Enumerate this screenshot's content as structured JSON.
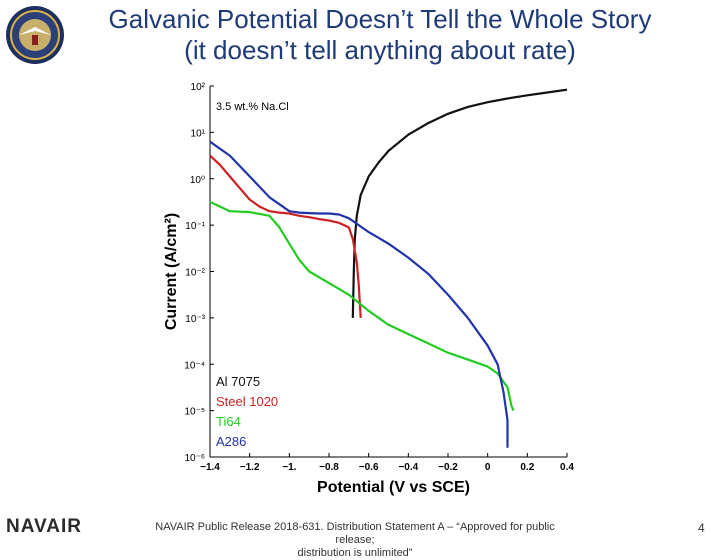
{
  "slide": {
    "title_line1": "Galvanic Potential Doesn’t Tell the Whole Story",
    "title_line2": "(it doesn’t tell anything about rate)",
    "footer_brand": "NAVAIR",
    "footer_text": "NAVAIR Public Release 2018-631. Distribution Statement A – “Approved for public release;\ndistribution is unlimited”",
    "page_number": "4",
    "title_color": "#1f3a78"
  },
  "chart_data": {
    "type": "line",
    "annotation": "3.5 wt.% Na.Cl",
    "xlabel": "Potential (V vs SCE)",
    "ylabel": "Current (A/cm²)",
    "xlim": [
      -1.4,
      0.4
    ],
    "ylim_log10": [
      -6,
      2
    ],
    "y_scale": "log",
    "x_ticks": [
      "−1.4",
      "−1.2",
      "−1.",
      "−0.8",
      "−0.6",
      "−0.4",
      "−0.2",
      "0",
      "0.2",
      "0.4"
    ],
    "x_tick_values": [
      -1.4,
      -1.2,
      -1.0,
      -0.8,
      -0.6,
      -0.4,
      -0.2,
      0,
      0.2,
      0.4
    ],
    "y_ticks": [
      "10⁻⁶",
      "10⁻⁵",
      "10⁻⁴",
      "10⁻³",
      "10⁻²",
      "10⁻¹",
      "10⁰",
      "10¹",
      "10²"
    ],
    "y_tick_exponents": [
      -6,
      -5,
      -4,
      -3,
      -2,
      -1,
      0,
      1,
      2
    ],
    "grid": false,
    "legend_position": "bottom-left",
    "series": [
      {
        "name": "Al 7075",
        "color": "#111111",
        "points": [
          [
            -0.68,
            -3.0
          ],
          [
            -0.675,
            -2.0
          ],
          [
            -0.67,
            -1.3
          ],
          [
            -0.66,
            -0.8
          ],
          [
            -0.64,
            -0.35
          ],
          [
            -0.6,
            0.05
          ],
          [
            -0.55,
            0.35
          ],
          [
            -0.5,
            0.6
          ],
          [
            -0.4,
            0.95
          ],
          [
            -0.3,
            1.2
          ],
          [
            -0.2,
            1.4
          ],
          [
            -0.1,
            1.55
          ],
          [
            0.0,
            1.65
          ],
          [
            0.1,
            1.73
          ],
          [
            0.2,
            1.8
          ],
          [
            0.3,
            1.86
          ],
          [
            0.4,
            1.92
          ]
        ]
      },
      {
        "name": "Steel 1020",
        "color": "#cc2222",
        "points": [
          [
            -1.4,
            0.5
          ],
          [
            -1.35,
            0.3
          ],
          [
            -1.3,
            0.05
          ],
          [
            -1.25,
            -0.2
          ],
          [
            -1.2,
            -0.45
          ],
          [
            -1.15,
            -0.6
          ],
          [
            -1.1,
            -0.7
          ],
          [
            -1.05,
            -0.73
          ],
          [
            -1.0,
            -0.75
          ],
          [
            -0.95,
            -0.8
          ],
          [
            -0.9,
            -0.83
          ],
          [
            -0.85,
            -0.87
          ],
          [
            -0.8,
            -0.9
          ],
          [
            -0.75,
            -0.95
          ],
          [
            -0.7,
            -1.05
          ],
          [
            -0.68,
            -1.3
          ],
          [
            -0.66,
            -1.8
          ],
          [
            -0.65,
            -2.3
          ],
          [
            -0.64,
            -3.0
          ]
        ]
      },
      {
        "name": "Ti64",
        "color": "#22cc22",
        "points": [
          [
            -1.4,
            -0.5
          ],
          [
            -1.3,
            -0.7
          ],
          [
            -1.2,
            -0.72
          ],
          [
            -1.1,
            -0.8
          ],
          [
            -1.05,
            -1.05
          ],
          [
            -1.0,
            -1.4
          ],
          [
            -0.95,
            -1.75
          ],
          [
            -0.9,
            -2.0
          ],
          [
            -0.8,
            -2.25
          ],
          [
            -0.7,
            -2.5
          ],
          [
            -0.6,
            -2.85
          ],
          [
            -0.5,
            -3.15
          ],
          [
            -0.4,
            -3.35
          ],
          [
            -0.3,
            -3.55
          ],
          [
            -0.2,
            -3.75
          ],
          [
            -0.1,
            -3.9
          ],
          [
            0.0,
            -4.05
          ],
          [
            0.05,
            -4.2
          ],
          [
            0.1,
            -4.5
          ],
          [
            0.12,
            -4.9
          ],
          [
            0.13,
            -5.0
          ]
        ]
      },
      {
        "name": "A286",
        "color": "#2233aa",
        "points": [
          [
            -1.4,
            0.8
          ],
          [
            -1.3,
            0.5
          ],
          [
            -1.2,
            0.05
          ],
          [
            -1.1,
            -0.4
          ],
          [
            -1.0,
            -0.7
          ],
          [
            -0.95,
            -0.73
          ],
          [
            -0.9,
            -0.74
          ],
          [
            -0.85,
            -0.75
          ],
          [
            -0.8,
            -0.75
          ],
          [
            -0.75,
            -0.77
          ],
          [
            -0.7,
            -0.85
          ],
          [
            -0.6,
            -1.15
          ],
          [
            -0.5,
            -1.4
          ],
          [
            -0.4,
            -1.7
          ],
          [
            -0.3,
            -2.05
          ],
          [
            -0.2,
            -2.5
          ],
          [
            -0.1,
            -3.0
          ],
          [
            0.0,
            -3.6
          ],
          [
            0.05,
            -4.0
          ],
          [
            0.08,
            -4.6
          ],
          [
            0.1,
            -5.2
          ],
          [
            0.1,
            -5.8
          ]
        ]
      }
    ]
  }
}
